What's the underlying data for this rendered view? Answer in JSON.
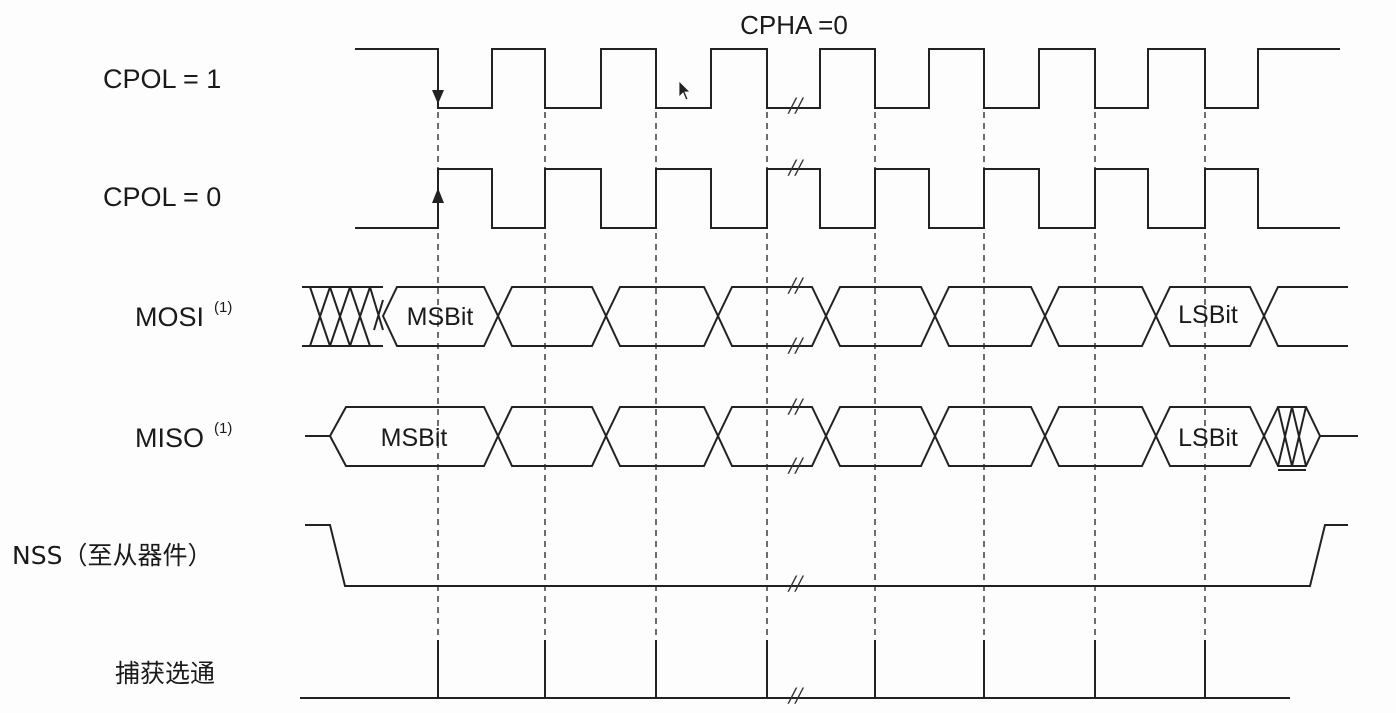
{
  "title": "CPHA =0",
  "signals": {
    "cpol1": "CPOL = 1",
    "cpol0": "CPOL = 0",
    "mosi": "MOSI",
    "mosi_sup": "(1)",
    "miso": "MISO",
    "miso_sup": "(1)",
    "nss": "NSS（至从器件）",
    "strobe": "捕获选通"
  },
  "cells": {
    "mosi_first": "MSBit",
    "mosi_last": "LSBit",
    "miso_first": "MSBit",
    "miso_last": "LSBit"
  },
  "break_mark": "//"
}
